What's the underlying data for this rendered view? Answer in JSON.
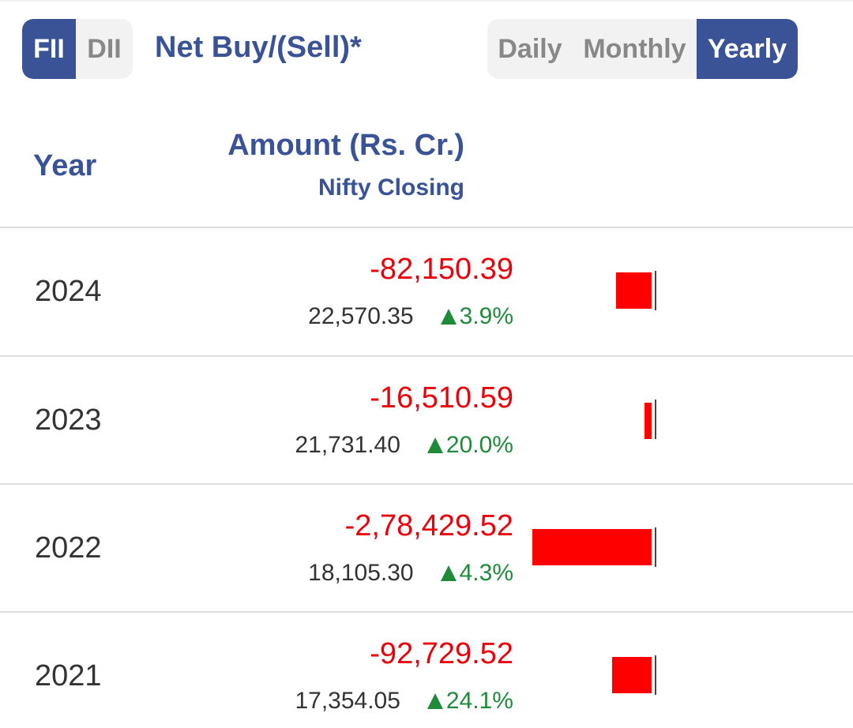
{
  "toggle_investor": {
    "fii_label": "FII",
    "dii_label": "DII",
    "selected": "FII"
  },
  "title": "Net Buy/(Sell)*",
  "toggle_period": {
    "daily_label": "Daily",
    "monthly_label": "Monthly",
    "yearly_label": "Yearly",
    "selected": "Yearly"
  },
  "table": {
    "headers": {
      "year": "Year",
      "amount": "Amount (Rs. Cr.)",
      "nifty": "Nifty Closing"
    },
    "rows": [
      {
        "year": "2024",
        "amount": "-82,150.39",
        "amount_value": -82150.39,
        "nifty_closing": "22,570.35",
        "change": "3.9%",
        "direction": "up"
      },
      {
        "year": "2023",
        "amount": "-16,510.59",
        "amount_value": -16510.59,
        "nifty_closing": "21,731.40",
        "change": "20.0%",
        "direction": "up"
      },
      {
        "year": "2022",
        "amount": "-2,78,429.52",
        "amount_value": -278429.52,
        "nifty_closing": "18,105.30",
        "change": "4.3%",
        "direction": "up"
      },
      {
        "year": "2021",
        "amount": "-92,729.52",
        "amount_value": -92729.52,
        "nifty_closing": "17,354.05",
        "change": "24.1%",
        "direction": "up"
      }
    ]
  },
  "colors": {
    "accent": "#3a5296",
    "negative": "#e8000a",
    "positive": "#1f8b3a",
    "bar_negative": "#ff0000"
  }
}
